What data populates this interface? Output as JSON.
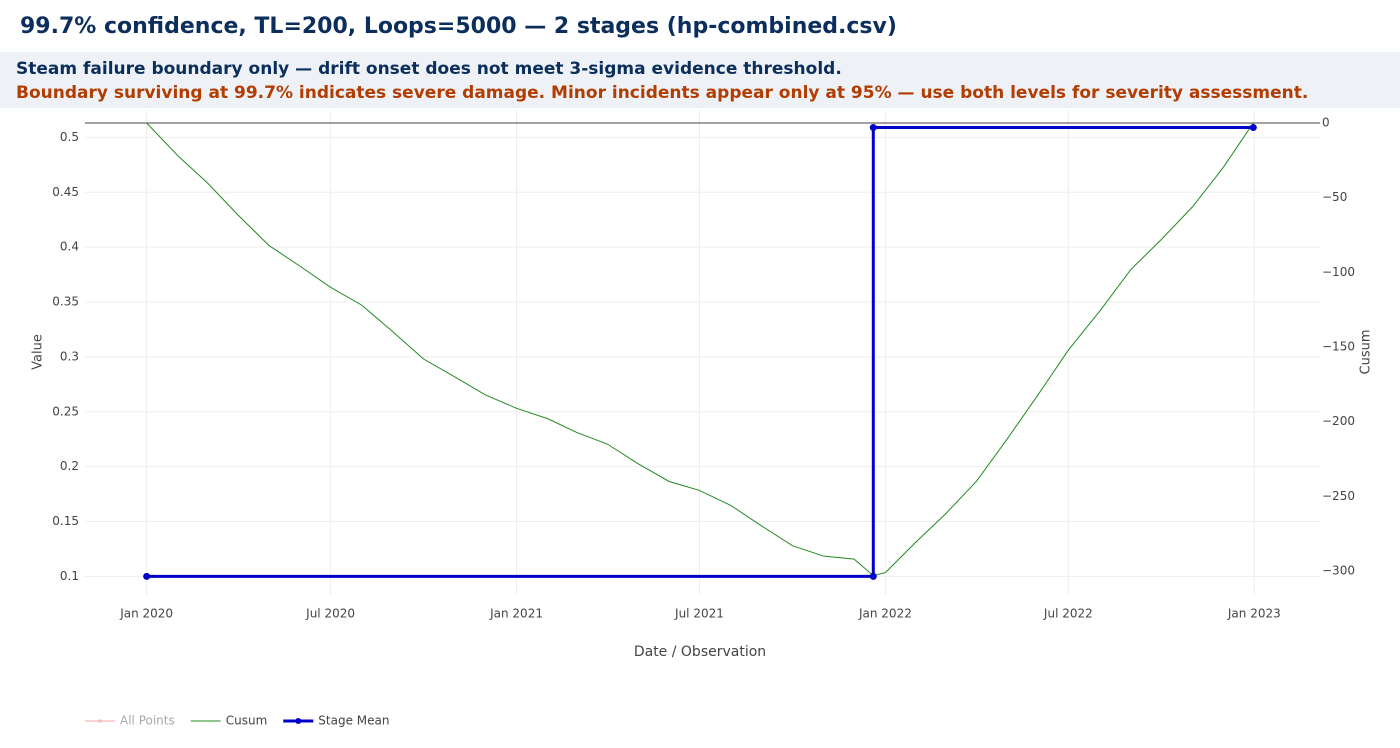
{
  "chart_data": {
    "type": "line",
    "title": "99.7% confidence, TL=200, Loops=5000 — 2 stages  (hp-combined.csv)",
    "subtitle": "Steam failure boundary only — drift onset does not meet 3-sigma evidence threshold.",
    "annotation": "Boundary surviving at 99.7% indicates severe damage. Minor incidents appear only at 95% — use both levels for severity assessment.",
    "x_label": "Date / Observation",
    "y_label": "Value",
    "y2_label": "Cusum",
    "xlim": [
      "2019-11-01",
      "2023-03-07"
    ],
    "xticks": [
      {
        "value": "2020-01-01",
        "label": "Jan 2020"
      },
      {
        "value": "2020-07-01",
        "label": "Jul 2020"
      },
      {
        "value": "2021-01-01",
        "label": "Jan 2021"
      },
      {
        "value": "2021-07-01",
        "label": "Jul 2021"
      },
      {
        "value": "2022-01-01",
        "label": "Jan 2022"
      },
      {
        "value": "2022-07-01",
        "label": "Jul 2022"
      },
      {
        "value": "2023-01-01",
        "label": "Jan 2023"
      }
    ],
    "ylim": [
      0.083,
      0.525
    ],
    "yticks": [
      0.1,
      0.15,
      0.2,
      0.25,
      0.3,
      0.35,
      0.4,
      0.45,
      0.5
    ],
    "y2lim": [
      -316,
      8.7
    ],
    "y2ticks": [
      0,
      {
        "value": -50,
        "label": "−50"
      },
      {
        "value": -100,
        "label": "−100"
      },
      {
        "value": -150,
        "label": "−150"
      },
      {
        "value": -200,
        "label": "−200"
      },
      {
        "value": -250,
        "label": "−250"
      },
      {
        "value": -300,
        "label": "−300"
      }
    ],
    "grid": true,
    "legend": "bottom-left",
    "series": [
      {
        "name": "All Points",
        "color": "#f2a0a0",
        "hidden": true
      },
      {
        "name": "Cusum",
        "color": "#228b22",
        "axis": "y2",
        "x": [
          "2020-01-01",
          "2020-02-01",
          "2020-03-01",
          "2020-04-01",
          "2020-05-01",
          "2020-06-01",
          "2020-07-01",
          "2020-08-01",
          "2020-09-01",
          "2020-10-01",
          "2020-11-01",
          "2020-12-01",
          "2021-01-01",
          "2021-02-01",
          "2021-03-01",
          "2021-04-01",
          "2021-05-01",
          "2021-06-01",
          "2021-07-01",
          "2021-08-01",
          "2021-09-01",
          "2021-10-01",
          "2021-11-01",
          "2021-12-01",
          "2021-12-20",
          "2022-01-01",
          "2022-02-01",
          "2022-03-01",
          "2022-04-01",
          "2022-05-01",
          "2022-06-01",
          "2022-07-01",
          "2022-08-01",
          "2022-09-01",
          "2022-10-01",
          "2022-11-01",
          "2022-12-01",
          "2022-12-31"
        ],
        "values": [
          0,
          -22,
          -40,
          -62,
          -82,
          -96,
          -110,
          -122,
          -140,
          -158,
          -170,
          -182,
          -191,
          -198,
          -207,
          -215,
          -228,
          -240,
          -246,
          -256,
          -270,
          -283,
          -290,
          -292,
          -303,
          -301,
          -280,
          -262,
          -240,
          -212,
          -182,
          -152,
          -126,
          -98,
          -78,
          -56,
          -30,
          0
        ]
      },
      {
        "name": "Stage Mean",
        "color": "#0000cc",
        "markers": true,
        "x": [
          "2020-01-01",
          "2021-12-20",
          "2021-12-20",
          "2022-12-31"
        ],
        "values": [
          0.1,
          0.1,
          0.509,
          0.509
        ]
      }
    ]
  }
}
